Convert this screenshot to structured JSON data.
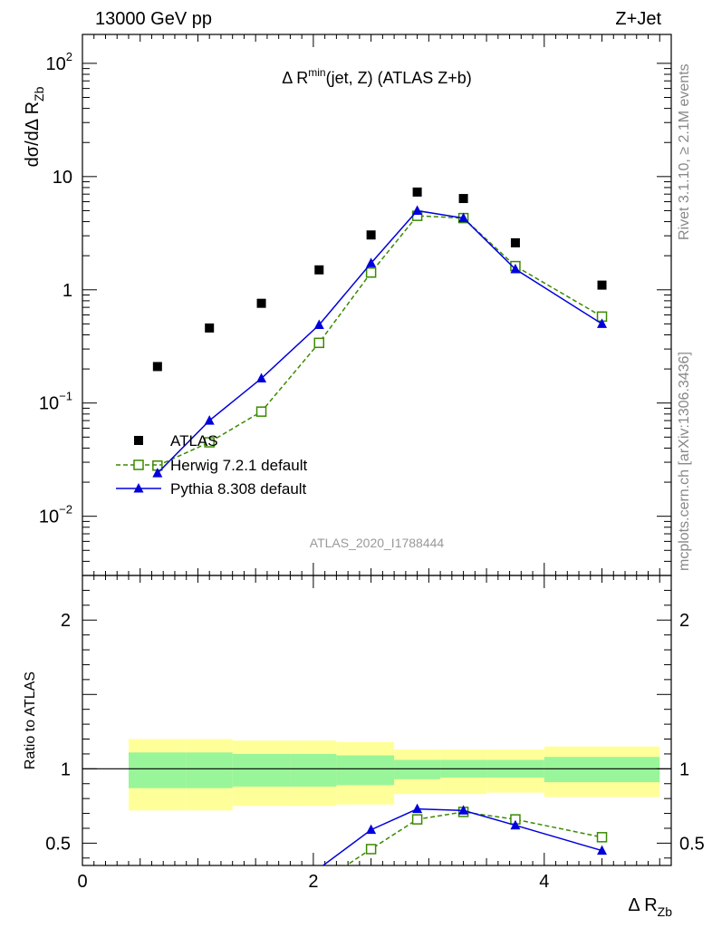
{
  "header": {
    "energy_label": "13000 GeV pp",
    "process_label": "Z+Jet"
  },
  "side_labels": {
    "rivet": "Rivet 3.1.10, ≥ 2.1M events",
    "mcplots": "mcplots.cern.ch [arXiv:1306.3436]"
  },
  "chart_data": [
    {
      "type": "scatter",
      "panel": "main",
      "title_parts": {
        "prefix": "Δ R",
        "sup": "min",
        "suffix": "(jet, Z) (ATLAS Z+b)"
      },
      "ylabel_parts": {
        "main": "dσ/dΔ R",
        "sub": "Zb"
      },
      "watermark": "ATLAS_2020_I1788444",
      "yscale": "log",
      "xlim": [
        0,
        5.1
      ],
      "ylim": [
        0.003,
        180
      ],
      "ytick_labels": [
        {
          "value": 100,
          "base": "10",
          "exp": "2"
        },
        {
          "value": 10,
          "base": "10",
          "exp": ""
        },
        {
          "value": 1,
          "base": "1",
          "exp": ""
        },
        {
          "value": 0.1,
          "base": "10",
          "exp": "−1"
        },
        {
          "value": 0.01,
          "base": "10",
          "exp": "−2"
        }
      ],
      "legend_position": "bottom-left",
      "series": [
        {
          "name": "ATLAS",
          "color": "#000000",
          "marker": "square-filled",
          "x": [
            0.65,
            1.1,
            1.55,
            2.05,
            2.5,
            2.9,
            3.3,
            3.75,
            4.5
          ],
          "y": [
            0.21,
            0.46,
            0.76,
            1.5,
            3.05,
            7.3,
            6.4,
            2.6,
            1.1
          ]
        },
        {
          "name": "Herwig 7.2.1 default",
          "color": "#3a8a00",
          "marker": "square-open",
          "linestyle": "dashed",
          "x": [
            0.65,
            1.1,
            1.55,
            2.05,
            2.5,
            2.9,
            3.3,
            3.75,
            4.5
          ],
          "y": [
            0.028,
            0.045,
            0.084,
            0.34,
            1.42,
            4.5,
            4.3,
            1.62,
            0.58
          ]
        },
        {
          "name": "Pythia 8.308 default",
          "color": "#0000dd",
          "marker": "triangle-filled",
          "linestyle": "solid",
          "x": [
            0.65,
            1.1,
            1.55,
            2.05,
            2.5,
            2.9,
            3.3,
            3.75,
            4.5
          ],
          "y": [
            0.024,
            0.07,
            0.165,
            0.49,
            1.72,
            5.0,
            4.3,
            1.52,
            0.5
          ]
        }
      ]
    },
    {
      "type": "line",
      "panel": "ratio",
      "ylabel": "Ratio to ATLAS",
      "xlabel_parts": {
        "main": "Δ R",
        "sub": "Zb"
      },
      "xlim": [
        0,
        5.1
      ],
      "ylim": [
        0.35,
        2.3
      ],
      "xtick_labels": [
        "0",
        "2",
        "4"
      ],
      "ytick_labels": [
        "2",
        "1",
        "0.5"
      ],
      "bins": [
        0.4,
        0.9,
        1.3,
        1.8,
        2.2,
        2.7,
        3.1,
        3.5,
        4.0,
        5.0
      ],
      "band_stat": {
        "color": "#99f599",
        "low": [
          0.87,
          0.87,
          0.88,
          0.88,
          0.89,
          0.93,
          0.94,
          0.94,
          0.91
        ],
        "high": [
          1.11,
          1.11,
          1.1,
          1.1,
          1.09,
          1.06,
          1.06,
          1.06,
          1.08
        ]
      },
      "band_total": {
        "color": "#ffff99",
        "low": [
          0.72,
          0.72,
          0.75,
          0.75,
          0.76,
          0.83,
          0.83,
          0.84,
          0.81
        ],
        "high": [
          1.2,
          1.2,
          1.19,
          1.19,
          1.18,
          1.13,
          1.13,
          1.13,
          1.15
        ]
      },
      "series": [
        {
          "name": "Herwig 7.2.1 default",
          "color": "#3a8a00",
          "marker": "square-open",
          "linestyle": "dashed",
          "x": [
            2.05,
            2.5,
            2.9,
            3.3,
            3.75,
            4.5
          ],
          "y": [
            0.23,
            0.46,
            0.66,
            0.71,
            0.66,
            0.54
          ]
        },
        {
          "name": "Pythia 8.308 default",
          "color": "#0000dd",
          "marker": "triangle-filled",
          "linestyle": "solid",
          "x": [
            2.05,
            2.5,
            2.9,
            3.3,
            3.75,
            4.5
          ],
          "y": [
            0.33,
            0.59,
            0.73,
            0.72,
            0.62,
            0.45
          ]
        }
      ]
    }
  ]
}
